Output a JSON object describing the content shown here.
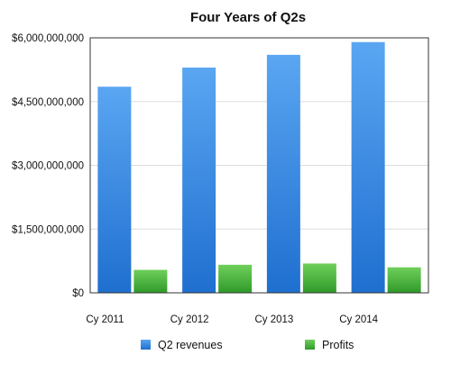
{
  "chart_data": {
    "type": "bar",
    "title": "Four Years of Q2s",
    "categories": [
      "Cy 2011",
      "Cy 2012",
      "Cy 2013",
      "Cy 2014"
    ],
    "series": [
      {
        "name": "Q2 revenues",
        "values": [
          4850000000,
          5300000000,
          5600000000,
          5900000000
        ],
        "color": "#3a86e0"
      },
      {
        "name": "Profits",
        "values": [
          540000000,
          660000000,
          690000000,
          600000000
        ],
        "color": "#4caf3a"
      }
    ],
    "ylim": [
      0,
      6000000000
    ],
    "yticks": [
      {
        "value": 0,
        "label": "$0"
      },
      {
        "value": 1500000000,
        "label": "$1,500,000,000"
      },
      {
        "value": 3000000000,
        "label": "$3,000,000,000"
      },
      {
        "value": 4500000000,
        "label": "$4,500,000,000"
      },
      {
        "value": 6000000000,
        "label": "$6,000,000,000"
      }
    ],
    "grid": true,
    "legend_position": "bottom"
  }
}
